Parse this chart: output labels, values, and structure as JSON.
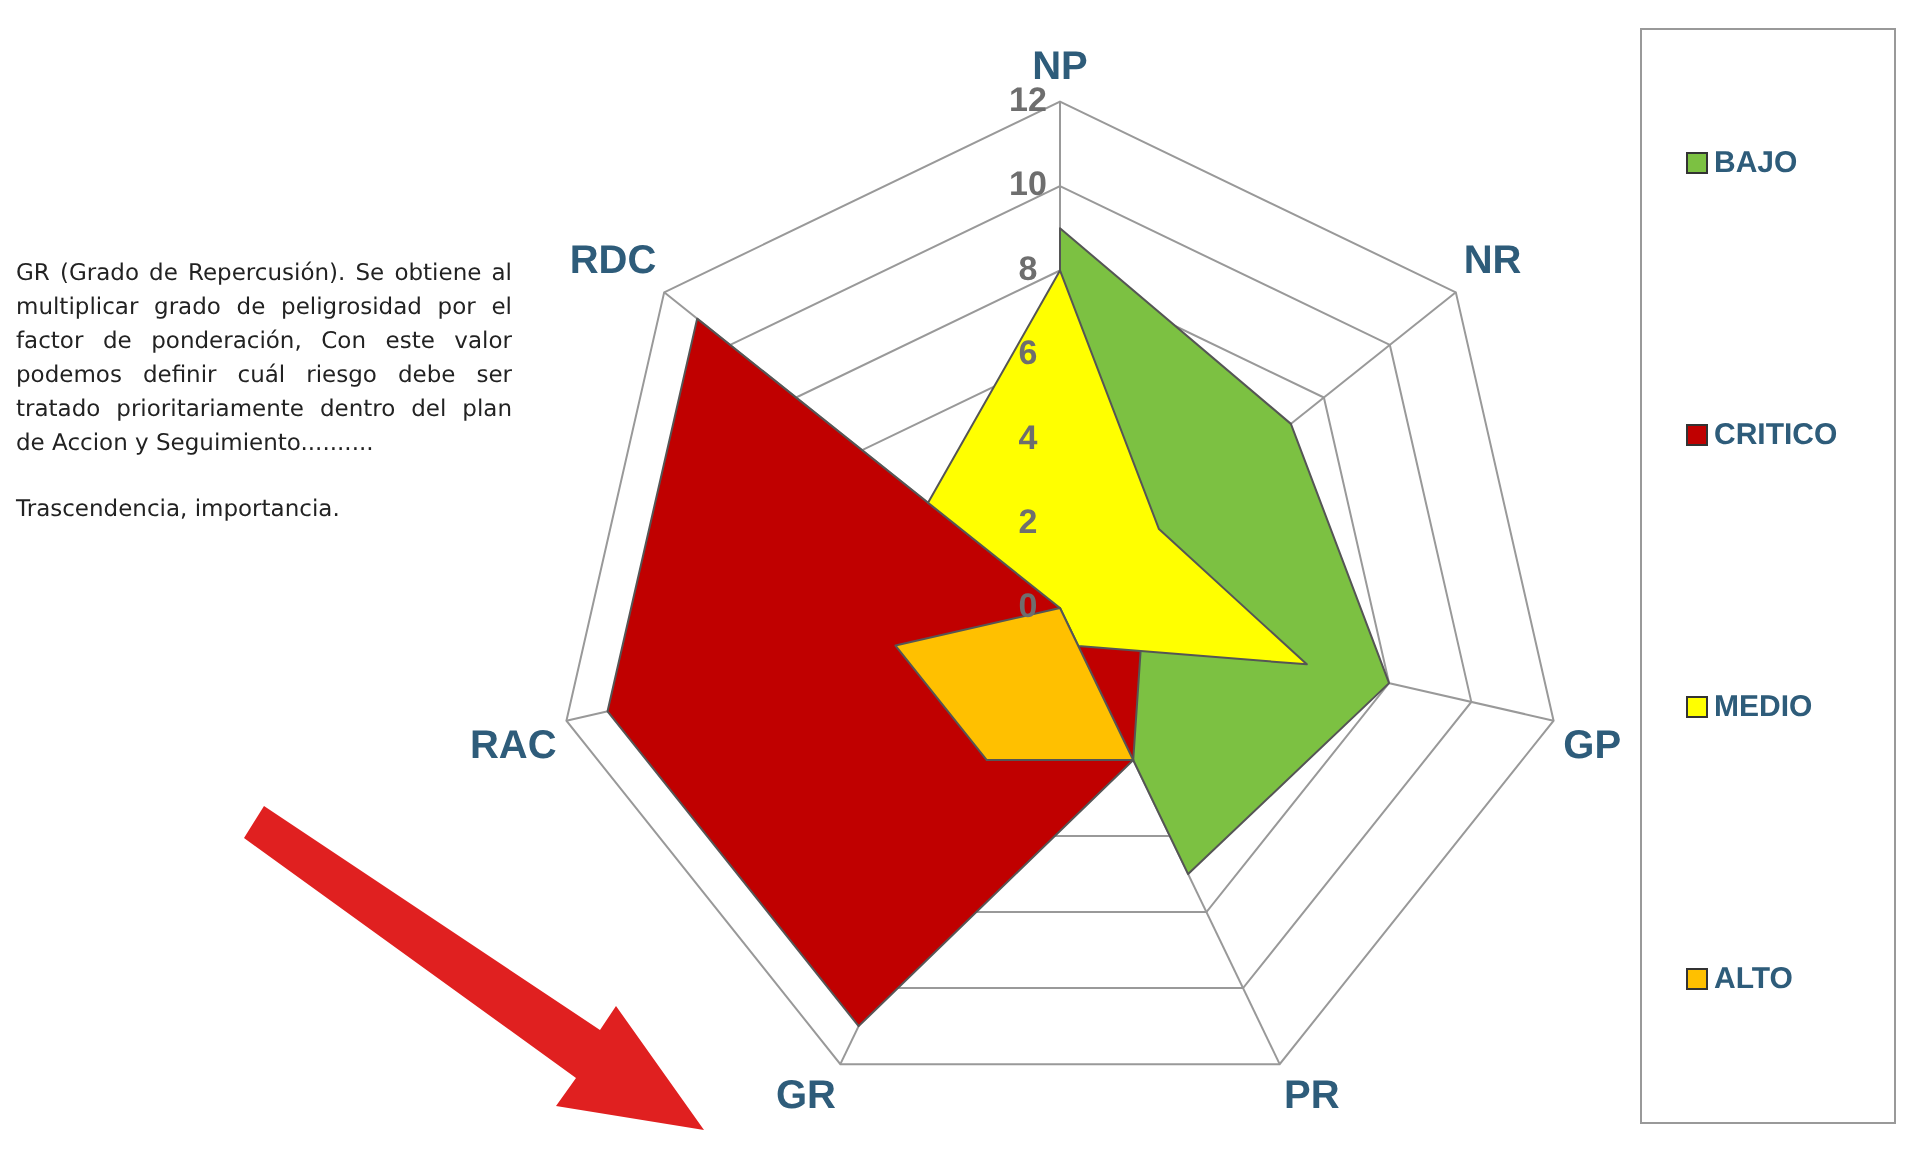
{
  "chart_data": {
    "type": "radar",
    "categories": [
      "NP",
      "NR",
      "GP",
      "PR",
      "GR",
      "RAC",
      "RDC"
    ],
    "series": [
      {
        "name": "BAJO",
        "color": "#7cc142",
        "values": [
          9,
          7,
          8,
          7,
          0,
          0,
          0
        ]
      },
      {
        "name": "CRITICO",
        "color": "#c00000",
        "values": [
          0,
          0,
          2,
          4,
          11,
          11,
          11
        ]
      },
      {
        "name": "MEDIO",
        "color": "#ffff00",
        "values": [
          8,
          3,
          6,
          1,
          0,
          0,
          4
        ]
      },
      {
        "name": "ALTO",
        "color": "#ffc000",
        "values": [
          0,
          0,
          0,
          4,
          4,
          4,
          0
        ]
      }
    ],
    "ylim": [
      0,
      12
    ],
    "yticks": [
      0,
      2,
      4,
      6,
      8,
      10,
      12
    ],
    "grid": true,
    "legend": "right",
    "marker": "none",
    "annotations": [
      "GR (Grado de Repercusión). Se obtiene al multiplicar grado de peligrosidad por el factor de ponderación,   Con este valor podemos definir cuál riesgo debe ser tratado prioritariamente dentro del plan de Accion y Seguimiento..........",
      "Trascendencia, importancia."
    ]
  }
}
